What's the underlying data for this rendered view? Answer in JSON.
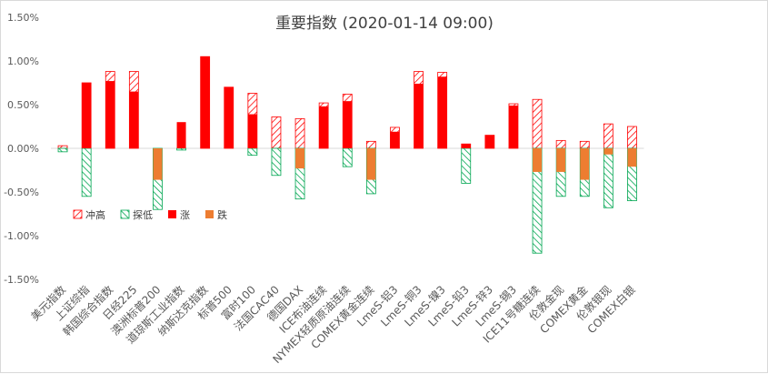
{
  "chart_data": {
    "type": "bar",
    "title": "重要指数 (2020-01-14 09:00)",
    "ylim": [
      -1.5,
      1.5
    ],
    "yticks": [
      "1.50%",
      "1.00%",
      "0.50%",
      "0.00%",
      "-0.50%",
      "-1.00%",
      "-1.50%"
    ],
    "grid": false,
    "legend_position": "left-middle",
    "categories": [
      "美元指数",
      "上证综指",
      "韩国综合指数",
      "日经225",
      "澳洲标普200",
      "道琼斯工业指数",
      "纳斯达克指数",
      "标普500",
      "富时100",
      "法国CAC40",
      "德国DAX",
      "ICE布油连续",
      "NYMEX轻质原油连续",
      "COMEX黄金连续",
      "LmeS-铝3",
      "LmeS-铜3",
      "LmeS-镍3",
      "LmeS-铅3",
      "LmeS-锌3",
      "LmeS-锡3",
      "ICE11号糖连续",
      "伦敦金现",
      "COMEX黄金",
      "伦敦银现",
      "COMEX白银"
    ],
    "series": [
      {
        "name": "冲高",
        "color": "#ff0000",
        "values": [
          0.03,
          0.75,
          0.88,
          0.88,
          0.0,
          0.0,
          1.05,
          0.7,
          0.63,
          0.36,
          0.34,
          0.52,
          0.62,
          0.08,
          0.24,
          0.88,
          0.87,
          0.05,
          0.15,
          0.51,
          0.56,
          0.09,
          0.08,
          0.28,
          0.25
        ]
      },
      {
        "name": "探低",
        "color": "#00a651",
        "values": [
          -0.04,
          -0.55,
          0.0,
          0.0,
          -0.7,
          -0.02,
          0.0,
          0.0,
          -0.08,
          -0.31,
          -0.58,
          0.0,
          -0.21,
          -0.52,
          0.0,
          0.0,
          0.0,
          -0.4,
          0.0,
          0.0,
          -1.2,
          -0.55,
          -0.55,
          -0.68,
          -0.6
        ]
      },
      {
        "name": "涨",
        "color": "#ff0000",
        "values": [
          0.0,
          0.75,
          0.77,
          0.65,
          0.0,
          0.3,
          1.05,
          0.7,
          0.39,
          0.0,
          0.0,
          0.48,
          0.54,
          0.0,
          0.19,
          0.74,
          0.82,
          0.05,
          0.15,
          0.49,
          0.0,
          0.0,
          0.0,
          0.0,
          0.0
        ]
      },
      {
        "name": "跌",
        "color": "#ed7d31",
        "values": [
          0.0,
          0.0,
          0.0,
          0.0,
          -0.36,
          0.0,
          0.0,
          0.0,
          0.0,
          0.0,
          -0.23,
          0.0,
          0.0,
          -0.36,
          0.0,
          0.0,
          0.0,
          0.0,
          0.0,
          0.0,
          -0.27,
          -0.27,
          -0.36,
          -0.07,
          -0.21
        ]
      }
    ]
  }
}
